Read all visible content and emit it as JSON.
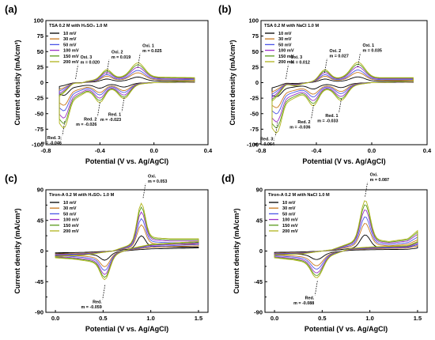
{
  "figure": {
    "background": "#ffffff",
    "text_color": "#000000"
  },
  "legend_colors": [
    "#000000",
    "#c8781e",
    "#4b55e6",
    "#9b30c8",
    "#5a9a1c",
    "#b0b41c"
  ],
  "chart_data": [
    {
      "panel_label": "(a)",
      "type": "line",
      "title": "TSA 0.2 M with H₂SO₄ 1.0 M",
      "xlabel": "Potential (V vs. Ag/AgCl)",
      "ylabel": "Current density (mA/cm²)",
      "xlim": [
        -0.8,
        0.4
      ],
      "ylim": [
        -100,
        100
      ],
      "xticks": [
        "-0.8",
        "-0.4",
        "0.0",
        "0.4"
      ],
      "yticks": [
        "-100",
        "-75",
        "-50",
        "-25",
        "0",
        "25",
        "50",
        "75",
        "100"
      ],
      "legend": [
        "10 mV",
        "30 mV",
        "50 mV",
        "100 mV",
        "150 mV",
        "200 mV"
      ],
      "legend_position": "top-left",
      "series": [
        {
          "name": "10 mV",
          "color": "#000000"
        },
        {
          "name": "30 mV",
          "color": "#c8781e"
        },
        {
          "name": "50 mV",
          "color": "#4b55e6"
        },
        {
          "name": "100 mV",
          "color": "#9b30c8"
        },
        {
          "name": "150 mV",
          "color": "#5a9a1c"
        },
        {
          "name": "200 mV",
          "color": "#b0b41c"
        }
      ],
      "curve_model": {
        "x_range": [
          -0.7,
          0.3
        ],
        "anodic_baseline": [
          [
            -0.7,
            -22
          ],
          [
            -0.6,
            -8
          ],
          [
            -0.5,
            2
          ],
          [
            -0.4,
            6
          ],
          [
            -0.3,
            8
          ],
          [
            -0.2,
            9
          ],
          [
            -0.1,
            10
          ],
          [
            0.0,
            9
          ],
          [
            0.3,
            8
          ]
        ],
        "anodic_peaks": [
          [
            -0.6,
            6,
            0.05
          ],
          [
            -0.35,
            14,
            0.05
          ],
          [
            -0.12,
            22,
            0.07
          ]
        ],
        "cathodic_baseline": [
          [
            -0.7,
            -55
          ],
          [
            -0.6,
            -28
          ],
          [
            -0.5,
            -15
          ],
          [
            -0.4,
            -10
          ],
          [
            -0.3,
            -8
          ],
          [
            -0.2,
            -5
          ],
          [
            -0.1,
            -2
          ],
          [
            0.0,
            0
          ],
          [
            0.3,
            2
          ]
        ],
        "cathodic_peaks": [
          [
            -0.66,
            -28,
            0.04
          ],
          [
            -0.4,
            -22,
            0.05
          ],
          [
            -0.22,
            -20,
            0.06
          ]
        ],
        "scales": [
          0.28,
          0.5,
          0.62,
          0.78,
          0.9,
          1.0
        ]
      },
      "annotations": [
        {
          "label": "Oxi. 1",
          "slope": "m = 0.025",
          "x": -0.12,
          "y": 24
        },
        {
          "label": "Oxi. 2",
          "slope": "m = 0.019",
          "x": -0.35,
          "y": 14
        },
        {
          "label": "Oxi. 3",
          "slope": "m = 0.020",
          "x": -0.58,
          "y": 6
        },
        {
          "label": "Red. 1",
          "slope": "m = -0.023",
          "x": -0.22,
          "y": -24
        },
        {
          "label": "Red. 2",
          "slope": "m = -0.026",
          "x": -0.4,
          "y": -32
        },
        {
          "label": "Red. 3;",
          "slope": "m = -0.046",
          "x": -0.66,
          "y": -62
        }
      ]
    },
    {
      "panel_label": "(b)",
      "type": "line",
      "title": "TSA 0.2 M with NaCl 1.0 M",
      "xlabel": "Potential (V vs. Ag/AgCl)",
      "ylabel": "Current density (mA/cm²)",
      "xlim": [
        -0.8,
        0.4
      ],
      "ylim": [
        -100,
        100
      ],
      "xticks": [
        "-0.8",
        "-0.4",
        "0.0",
        "0.4"
      ],
      "yticks": [
        "-100",
        "-75",
        "-50",
        "-25",
        "0",
        "25",
        "50",
        "75",
        "100"
      ],
      "legend": [
        "10 mV",
        "30 mV",
        "50 mV",
        "100 mV",
        "150 mV",
        "200 mV"
      ],
      "legend_position": "top-left",
      "series": [
        {
          "name": "10 mV",
          "color": "#000000"
        },
        {
          "name": "30 mV",
          "color": "#c8781e"
        },
        {
          "name": "50 mV",
          "color": "#4b55e6"
        },
        {
          "name": "100 mV",
          "color": "#9b30c8"
        },
        {
          "name": "150 mV",
          "color": "#5a9a1c"
        },
        {
          "name": "200 mV",
          "color": "#b0b41c"
        }
      ],
      "curve_model": {
        "x_range": [
          -0.72,
          0.3
        ],
        "anodic_baseline": [
          [
            -0.72,
            -30
          ],
          [
            -0.62,
            -12
          ],
          [
            -0.5,
            -2
          ],
          [
            -0.4,
            3
          ],
          [
            -0.3,
            6
          ],
          [
            -0.2,
            8
          ],
          [
            -0.1,
            9
          ],
          [
            0.0,
            8
          ],
          [
            0.3,
            8
          ]
        ],
        "anodic_peaks": [
          [
            -0.62,
            8,
            0.05
          ],
          [
            -0.34,
            16,
            0.05
          ],
          [
            -0.1,
            24,
            0.07
          ]
        ],
        "cathodic_baseline": [
          [
            -0.72,
            -62
          ],
          [
            -0.62,
            -32
          ],
          [
            -0.5,
            -18
          ],
          [
            -0.4,
            -12
          ],
          [
            -0.3,
            -9
          ],
          [
            -0.2,
            -6
          ],
          [
            -0.1,
            -3
          ],
          [
            0.0,
            0
          ],
          [
            0.3,
            2
          ]
        ],
        "cathodic_peaks": [
          [
            -0.68,
            -30,
            0.04
          ],
          [
            -0.42,
            -24,
            0.05
          ],
          [
            -0.22,
            -22,
            0.06
          ]
        ],
        "scales": [
          0.28,
          0.5,
          0.62,
          0.78,
          0.9,
          1.0
        ]
      },
      "annotations": [
        {
          "label": "Oxi. 1",
          "slope": "m = 0.035",
          "x": -0.1,
          "y": 25
        },
        {
          "label": "Oxi. 2",
          "slope": "m = 0.027",
          "x": -0.34,
          "y": 16
        },
        {
          "label": "Oxi. 3",
          "slope": "m = 0.012",
          "x": -0.62,
          "y": 6
        },
        {
          "label": "Red. 1",
          "slope": "m = -0.033",
          "x": -0.22,
          "y": -26
        },
        {
          "label": "Red. 2",
          "slope": "m = -0.036",
          "x": -0.42,
          "y": -36
        },
        {
          "label": "Red. 3;",
          "slope": "m = -0.064",
          "x": -0.68,
          "y": -64
        }
      ]
    },
    {
      "panel_label": "(c)",
      "type": "line",
      "title": "Tiron-A 0.2 M with H₂SO₄ 1.0 M",
      "xlabel": "Potential (V vs. Ag/AgCl)",
      "ylabel": "Current density (mA/cm²)",
      "xlim": [
        -0.1,
        1.6
      ],
      "ylim": [
        -90,
        90
      ],
      "xticks": [
        "0.0",
        "0.5",
        "1.0",
        "1.5"
      ],
      "yticks": [
        "-90",
        "-45",
        "0",
        "45",
        "90"
      ],
      "minor_yticks": [
        "-67.5",
        "-22.5",
        "22.5",
        "67.5"
      ],
      "legend": [
        "10 mV",
        "30 mV",
        "50 mV",
        "100 mV",
        "150 mV",
        "200 mV"
      ],
      "legend_position": "top-left",
      "series": [
        {
          "name": "10 mV",
          "color": "#000000"
        },
        {
          "name": "30 mV",
          "color": "#c8781e"
        },
        {
          "name": "50 mV",
          "color": "#4b55e6"
        },
        {
          "name": "100 mV",
          "color": "#9b30c8"
        },
        {
          "name": "150 mV",
          "color": "#5a9a1c"
        },
        {
          "name": "200 mV",
          "color": "#b0b41c"
        }
      ],
      "curve_model": {
        "x_range": [
          0.0,
          1.5
        ],
        "anodic_baseline": [
          [
            0.0,
            -8
          ],
          [
            0.3,
            -6
          ],
          [
            0.6,
            0
          ],
          [
            0.8,
            10
          ],
          [
            1.0,
            20
          ],
          [
            1.2,
            18
          ],
          [
            1.5,
            18
          ]
        ],
        "anodic_peaks": [
          [
            0.9,
            55,
            0.06
          ]
        ],
        "cathodic_baseline": [
          [
            0.0,
            -10
          ],
          [
            0.2,
            -12
          ],
          [
            0.4,
            -16
          ],
          [
            0.6,
            -6
          ],
          [
            0.8,
            4
          ],
          [
            1.0,
            10
          ],
          [
            1.5,
            14
          ]
        ],
        "cathodic_peaks": [
          [
            0.52,
            -32,
            0.07
          ]
        ],
        "scales": [
          0.32,
          0.55,
          0.68,
          0.82,
          0.92,
          1.0
        ]
      },
      "annotations": [
        {
          "label": "Oxi.",
          "slope": "m = 0.053",
          "x": 0.92,
          "y": 78
        },
        {
          "label": "Red.",
          "slope": "m = -0.059",
          "x": 0.52,
          "y": -50
        }
      ]
    },
    {
      "panel_label": "(d)",
      "type": "line",
      "title": "Tiron-A 0.2 M with NaCl 1.0 M",
      "xlabel": "Potential (V vs. Ag/AgCl)",
      "ylabel": "Current density (mA/cm²)",
      "xlim": [
        -0.1,
        1.6
      ],
      "ylim": [
        -90,
        90
      ],
      "xticks": [
        "0.0",
        "0.5",
        "1.0",
        "1.5"
      ],
      "yticks": [
        "-90",
        "-45",
        "0",
        "45",
        "90"
      ],
      "minor_yticks": [
        "-67.5",
        "-22.5",
        "22.5",
        "67.5"
      ],
      "legend": [
        "10 mV",
        "30 mV",
        "50 mV",
        "100 mV",
        "150 mV",
        "200 mV"
      ],
      "legend_position": "top-left",
      "series": [
        {
          "name": "10 mV",
          "color": "#000000"
        },
        {
          "name": "30 mV",
          "color": "#c8781e"
        },
        {
          "name": "50 mV",
          "color": "#4b55e6"
        },
        {
          "name": "100 mV",
          "color": "#9b30c8"
        },
        {
          "name": "150 mV",
          "color": "#5a9a1c"
        },
        {
          "name": "200 mV",
          "color": "#b0b41c"
        }
      ],
      "curve_model": {
        "x_range": [
          0.0,
          1.5
        ],
        "anodic_baseline": [
          [
            0.0,
            -6
          ],
          [
            0.3,
            -4
          ],
          [
            0.6,
            2
          ],
          [
            0.8,
            12
          ],
          [
            1.0,
            18
          ],
          [
            1.2,
            14
          ],
          [
            1.4,
            18
          ],
          [
            1.5,
            30
          ]
        ],
        "anodic_peaks": [
          [
            0.95,
            58,
            0.07
          ]
        ],
        "cathodic_baseline": [
          [
            0.0,
            -10
          ],
          [
            0.2,
            -13
          ],
          [
            0.4,
            -18
          ],
          [
            0.6,
            -6
          ],
          [
            0.8,
            4
          ],
          [
            1.0,
            6
          ],
          [
            1.4,
            8
          ],
          [
            1.5,
            14
          ]
        ],
        "cathodic_peaks": [
          [
            0.45,
            -24,
            0.08
          ]
        ],
        "scales": [
          0.32,
          0.55,
          0.68,
          0.82,
          0.92,
          1.0
        ]
      },
      "annotations": [
        {
          "label": "Oxi.",
          "slope": "m = 0.087",
          "x": 0.95,
          "y": 80
        },
        {
          "label": "Red.",
          "slope": "m = -0.088",
          "x": 0.45,
          "y": -44
        }
      ]
    }
  ]
}
